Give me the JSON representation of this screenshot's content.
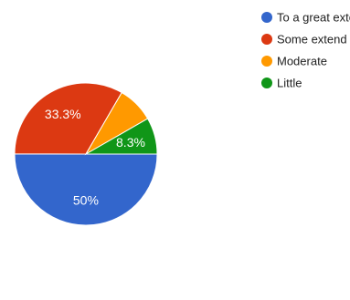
{
  "chart_data": {
    "type": "pie",
    "categories": [
      "To a great extent",
      "Some extend",
      "Moderate",
      "Little"
    ],
    "values": [
      50,
      33.3,
      8.3,
      8.3
    ],
    "data_labels": [
      "50%",
      "33.3%",
      "",
      "8.3%"
    ],
    "colors": [
      "#3366cc",
      "#dc3912",
      "#ff9900",
      "#109618"
    ],
    "start": "3 o'clock, counter-clockwise from bottom",
    "legend": "right",
    "title": ""
  }
}
